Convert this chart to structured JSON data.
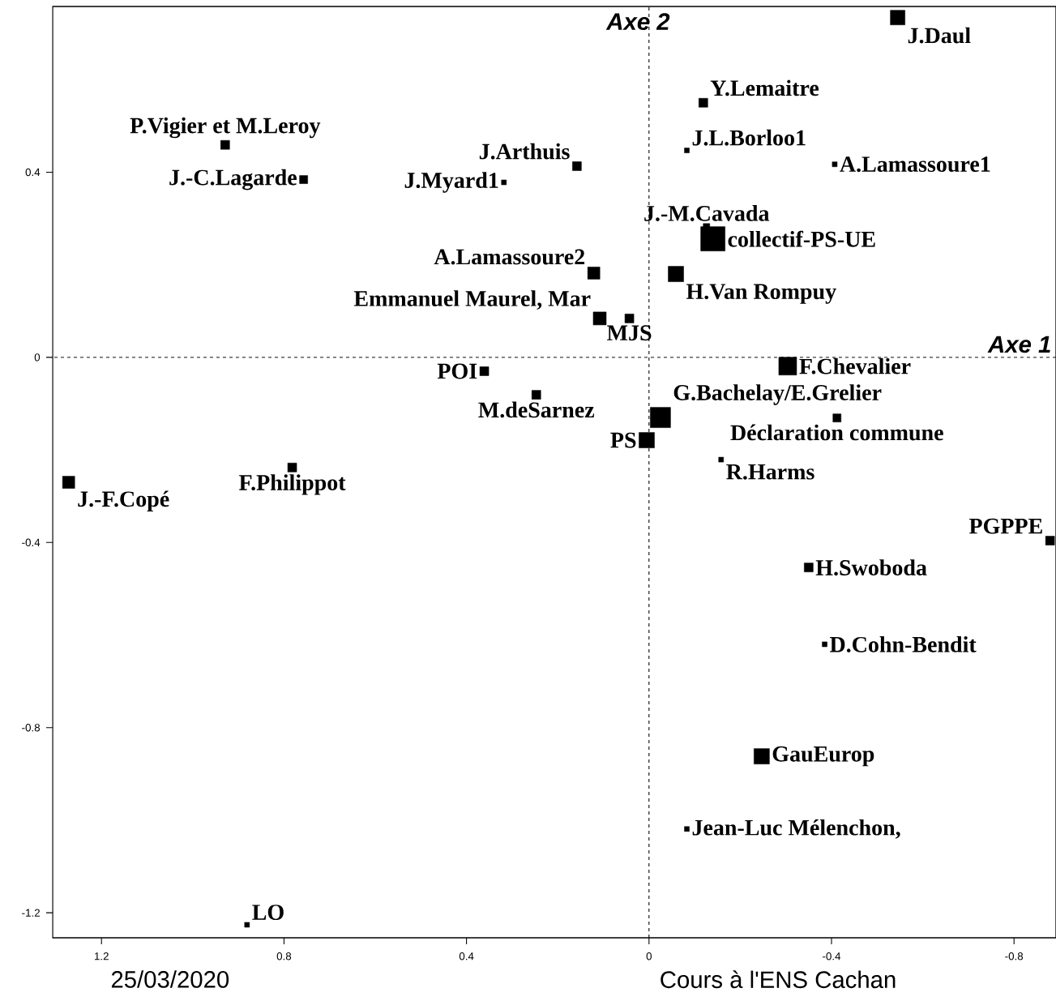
{
  "chart_data": {
    "type": "bubble",
    "xlim": [
      1.307,
      -0.892
    ],
    "ylim": [
      -1.254,
      0.758
    ],
    "xticks": [
      1.2,
      0.8,
      0.4,
      0,
      -0.4,
      -0.8
    ],
    "yticks": [
      0.4,
      0,
      -0.4,
      -0.8,
      -1.2
    ],
    "marker": "square",
    "series": [
      {
        "color": "#000000",
        "x": [
          -0.545,
          -0.119,
          0.929,
          -0.083,
          0.158,
          -0.407,
          0.757,
          0.318,
          -0.126,
          -0.14,
          0.121,
          -0.059,
          0.108,
          0.043,
          0.361,
          -0.304,
          0.247,
          -0.025,
          -0.412,
          0.005,
          -0.158,
          0.782,
          1.272,
          -0.879,
          -0.35,
          -0.385,
          -0.247,
          -0.083,
          0.881
        ],
        "values": [
          0.734,
          0.55,
          0.459,
          0.447,
          0.413,
          0.417,
          0.384,
          0.378,
          0.282,
          0.256,
          0.182,
          0.18,
          0.084,
          0.084,
          -0.03,
          -0.019,
          -0.081,
          -0.13,
          -0.131,
          -0.179,
          -0.221,
          -0.238,
          -0.27,
          -0.396,
          -0.454,
          -0.62,
          -0.862,
          -1.019,
          -1.226
        ],
        "sizes": [
          0.36,
          0.134,
          0.134,
          0.04,
          0.134,
          0.04,
          0.111,
          0.04,
          0.071,
          1,
          0.25,
          0.401,
          0.284,
          0.134,
          0.134,
          0.538,
          0.134,
          0.694,
          0.111,
          0.401,
          0.04,
          0.134,
          0.25,
          0.134,
          0.134,
          0.04,
          0.401,
          0.04,
          0.04
        ]
      }
    ],
    "ref_lines": [
      {
        "axis": "y",
        "value": 0,
        "label": "Axe 1",
        "line_style": "dashed"
      },
      {
        "axis": "x",
        "value": 0,
        "label": "Axe 2",
        "line_style": "dashed"
      }
    ],
    "annotations": [
      {
        "text": "J.Daul",
        "x": -0.545,
        "y": 0.734
      },
      {
        "text": "Y.Lemaitre",
        "x": -0.119,
        "y": 0.55
      },
      {
        "text": "P.Vigier et M.Leroy",
        "x": 0.929,
        "y": 0.459
      },
      {
        "text": "J.L.Borloo1",
        "x": -0.083,
        "y": 0.447
      },
      {
        "text": "J.Arthuis",
        "x": 0.158,
        "y": 0.413
      },
      {
        "text": "A.Lamassoure1",
        "x": -0.407,
        "y": 0.417
      },
      {
        "text": "J.-C.Lagarde",
        "x": 0.757,
        "y": 0.384
      },
      {
        "text": "J.Myard1",
        "x": 0.318,
        "y": 0.378
      },
      {
        "text": "J.-M.Cavada",
        "x": -0.126,
        "y": 0.282
      },
      {
        "text": "collectif-PS-UE",
        "x": -0.14,
        "y": 0.256
      },
      {
        "text": "A.Lamassoure2",
        "x": 0.121,
        "y": 0.182
      },
      {
        "text": "H.Van Rompuy",
        "x": -0.059,
        "y": 0.18
      },
      {
        "text": "Emmanuel Maurel, Mar",
        "x": 0.108,
        "y": 0.084
      },
      {
        "text": "MJS",
        "x": 0.043,
        "y": 0.084
      },
      {
        "text": "POI",
        "x": 0.361,
        "y": -0.03
      },
      {
        "text": "F.Chevalier",
        "x": -0.304,
        "y": -0.019
      },
      {
        "text": "M.deSarnez",
        "x": 0.247,
        "y": -0.081
      },
      {
        "text": "G.Bachelay/E.Grelier",
        "x": -0.025,
        "y": -0.13
      },
      {
        "text": "Déclaration commune",
        "x": -0.412,
        "y": -0.131
      },
      {
        "text": "PS",
        "x": 0.005,
        "y": -0.179
      },
      {
        "text": "R.Harms",
        "x": -0.158,
        "y": -0.221
      },
      {
        "text": "F.Philippot",
        "x": 0.782,
        "y": -0.238
      },
      {
        "text": "J.-F.Copé",
        "x": 1.272,
        "y": -0.27
      },
      {
        "text": "PGPPE",
        "x": -0.879,
        "y": -0.396
      },
      {
        "text": "H.Swoboda",
        "x": -0.35,
        "y": -0.454
      },
      {
        "text": "D.Cohn-Bendit",
        "x": -0.385,
        "y": -0.62
      },
      {
        "text": "GauEurop",
        "x": -0.247,
        "y": -0.862
      },
      {
        "text": "Jean-Luc Mélenchon,",
        "x": -0.083,
        "y": -1.019
      },
      {
        "text": "LO",
        "x": 0.881,
        "y": -1.226
      },
      "25/03/2020",
      "Cours à l'ENS Cachan"
    ]
  }
}
